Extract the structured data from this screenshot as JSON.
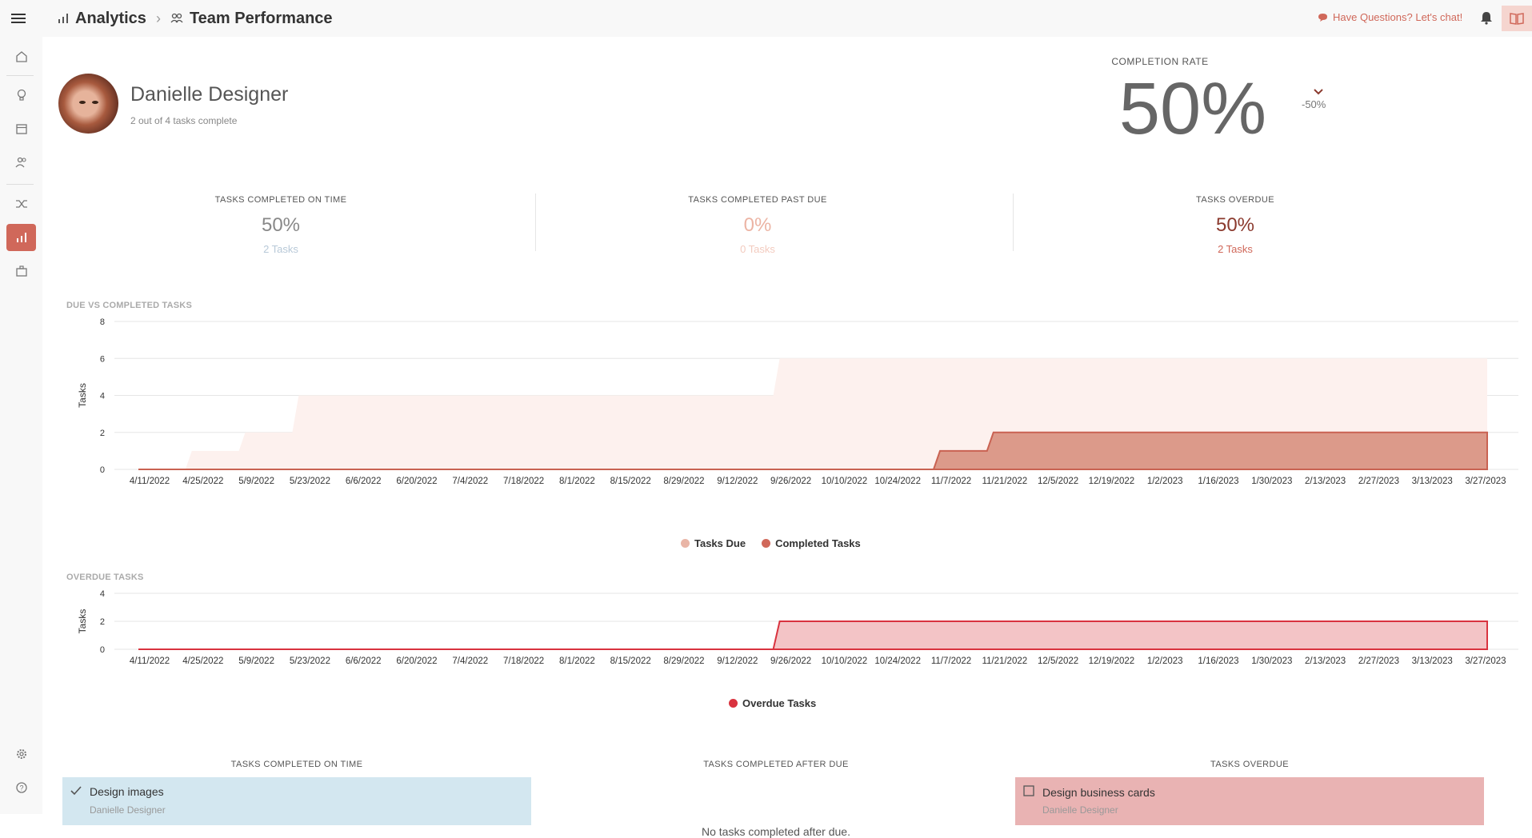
{
  "topbar": {
    "breadcrumb_section": "Analytics",
    "breadcrumb_page": "Team Performance",
    "chat_label": "Have Questions? Let's chat!"
  },
  "profile": {
    "name": "Danielle Designer",
    "subtitle": "2 out of 4 tasks complete"
  },
  "completion": {
    "label": "COMPLETION RATE",
    "value": "50%",
    "delta": "-50%"
  },
  "kpis": [
    {
      "label": "TASKS COMPLETED ON TIME",
      "value": "50%",
      "sub": "2 Tasks",
      "value_color": "#888888",
      "sub_color": "#b8c9d8"
    },
    {
      "label": "TASKS COMPLETED PAST DUE",
      "value": "0%",
      "sub": "0 Tasks",
      "value_color": "#ecb4a4",
      "sub_color": "#f3cbbf"
    },
    {
      "label": "TASKS OVERDUE",
      "value": "50%",
      "sub": "2 Tasks",
      "value_color": "#8b3a2e",
      "sub_color": "#d0685a"
    }
  ],
  "charts": {
    "due_title": "DUE VS COMPLETED TASKS",
    "overdue_title": "OVERDUE TASKS",
    "legend_due": "Tasks Due",
    "legend_completed": "Completed Tasks",
    "legend_overdue": "Overdue Tasks"
  },
  "chart_data": [
    {
      "type": "area",
      "title": "DUE VS COMPLETED TASKS",
      "ylabel": "Tasks",
      "ylim": [
        0,
        8
      ],
      "yticks": [
        0,
        2,
        4,
        6,
        8
      ],
      "x": [
        "4/11/2022",
        "4/25/2022",
        "5/9/2022",
        "5/23/2022",
        "6/6/2022",
        "6/20/2022",
        "7/4/2022",
        "7/18/2022",
        "8/1/2022",
        "8/15/2022",
        "8/29/2022",
        "9/12/2022",
        "9/26/2022",
        "10/10/2022",
        "10/24/2022",
        "11/7/2022",
        "11/21/2022",
        "12/5/2022",
        "12/19/2022",
        "1/2/2023",
        "1/16/2023",
        "1/30/2023",
        "2/13/2023",
        "2/27/2023",
        "3/13/2023",
        "3/27/2023"
      ],
      "series": [
        {
          "name": "Tasks Due",
          "color": "#e9b5a6",
          "values": [
            0,
            1,
            2,
            4,
            4,
            4,
            4,
            4,
            4,
            4,
            4,
            4,
            6,
            6,
            6,
            6,
            6,
            6,
            6,
            6,
            6,
            6,
            6,
            6,
            6,
            6
          ]
        },
        {
          "name": "Completed Tasks",
          "color": "#d0685a",
          "values": [
            0,
            0,
            0,
            0,
            0,
            0,
            0,
            0,
            0,
            0,
            0,
            0,
            0,
            0,
            0,
            1,
            2,
            2,
            2,
            2,
            2,
            2,
            2,
            2,
            2,
            2
          ]
        }
      ]
    },
    {
      "type": "area",
      "title": "OVERDUE TASKS",
      "ylabel": "Tasks",
      "ylim": [
        0,
        4
      ],
      "yticks": [
        0,
        2,
        4
      ],
      "x": [
        "4/11/2022",
        "4/25/2022",
        "5/9/2022",
        "5/23/2022",
        "6/6/2022",
        "6/20/2022",
        "7/4/2022",
        "7/18/2022",
        "8/1/2022",
        "8/15/2022",
        "8/29/2022",
        "9/12/2022",
        "9/26/2022",
        "10/10/2022",
        "10/24/2022",
        "11/7/2022",
        "11/21/2022",
        "12/5/2022",
        "12/19/2022",
        "1/2/2023",
        "1/16/2023",
        "1/30/2023",
        "2/13/2023",
        "2/27/2023",
        "3/13/2023",
        "3/27/2023"
      ],
      "series": [
        {
          "name": "Overdue Tasks",
          "color": "#d9333f",
          "values": [
            0,
            0,
            0,
            0,
            0,
            0,
            0,
            0,
            0,
            0,
            0,
            0,
            2,
            2,
            2,
            2,
            2,
            2,
            2,
            2,
            2,
            2,
            2,
            2,
            2,
            2
          ]
        }
      ]
    }
  ],
  "lists": {
    "on_time_title": "TASKS COMPLETED ON TIME",
    "after_due_title": "TASKS COMPLETED AFTER DUE",
    "overdue_title": "TASKS OVERDUE",
    "on_time_task": "Design images",
    "on_time_owner": "Danielle Designer",
    "after_due_empty": "No tasks completed after due.",
    "overdue_task": "Design business cards",
    "overdue_owner": "Danielle Designer"
  }
}
